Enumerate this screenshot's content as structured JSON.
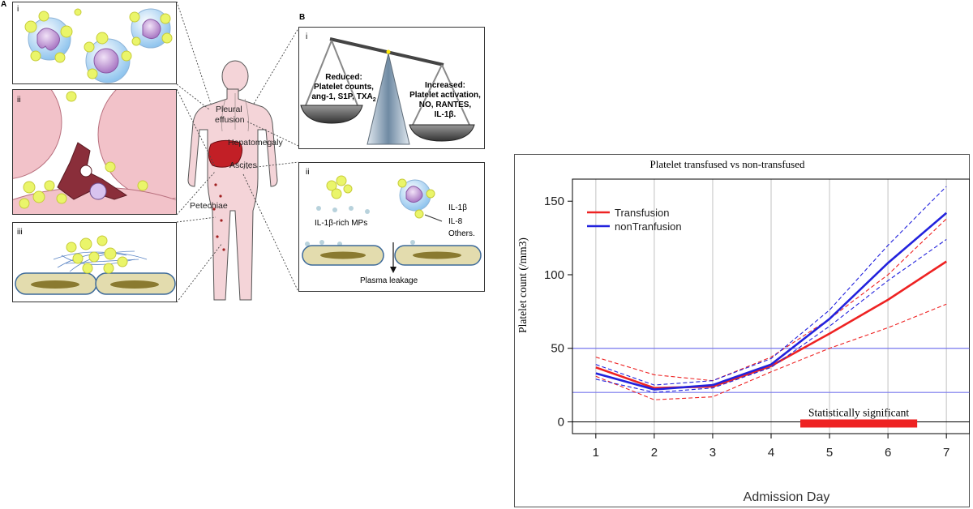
{
  "figure": {
    "panel_a_letter": "A",
    "panel_b_letter": "B",
    "sub_i": "i",
    "sub_ii": "ii",
    "sub_iii": "iii",
    "body_labels": {
      "pleural_1": "Pleural",
      "pleural_2": "effusion",
      "hepatomegaly": "Hepatomegaly",
      "ascites": "Ascites",
      "petechiae": "Petechiae"
    },
    "balance": {
      "reduced_1": "Reduced:",
      "reduced_2": "Platelet counts,",
      "reduced_3": "ang-1, S1P, TXA",
      "reduced_sub": "2",
      "increased_1": "Increased:",
      "increased_2": "Platelet activation,",
      "increased_3": "NO, RANTES,",
      "increased_4": "IL-1β."
    },
    "leakage": {
      "mps": "IL-1β-rich MPs",
      "il1b": "IL-1β",
      "il8": "IL-8",
      "others": "Others.",
      "plasma": "Plasma leakage"
    }
  },
  "chart_data": {
    "type": "line",
    "title": "Platelet transfused vs non-transfused",
    "xlabel": "Admission Day",
    "ylabel": "Platelet count (/mm3)",
    "x": [
      1,
      2,
      3,
      4,
      5,
      6,
      7
    ],
    "xlim": [
      0.6,
      7.4
    ],
    "ylim": [
      -8,
      165
    ],
    "xticks": [
      1,
      2,
      3,
      4,
      5,
      6,
      7
    ],
    "yticks": [
      0,
      50,
      100,
      150
    ],
    "reference_lines": [
      20,
      50
    ],
    "colors": {
      "transfusion": "#ee2222",
      "nontransfusion": "#2222dd",
      "refline": "#7777ee",
      "grid": "#cccccc"
    },
    "series": [
      {
        "name": "Transfusion",
        "color": "#ee2222",
        "style": "solid",
        "values": [
          37,
          23,
          24,
          38,
          60,
          83,
          109
        ]
      },
      {
        "name": "Transfusion upper",
        "color": "#ee2222",
        "style": "dashed",
        "values": [
          44,
          32,
          28,
          44,
          70,
          100,
          138
        ]
      },
      {
        "name": "Transfusion lower",
        "color": "#ee2222",
        "style": "dashed",
        "values": [
          31,
          15,
          17,
          34,
          50,
          64,
          80
        ]
      },
      {
        "name": "nonTranfusion",
        "color": "#2222dd",
        "style": "solid",
        "values": [
          33,
          22,
          25,
          39,
          70,
          108,
          142
        ]
      },
      {
        "name": "nonTranfusion upper",
        "color": "#2222dd",
        "style": "dashed",
        "values": [
          39,
          25,
          28,
          43,
          76,
          120,
          160
        ]
      },
      {
        "name": "nonTranfusion lower",
        "color": "#2222dd",
        "style": "dashed",
        "values": [
          29,
          20,
          23,
          37,
          65,
          96,
          124
        ]
      }
    ],
    "legend": [
      "Transfusion",
      "nonTranfusion"
    ],
    "legend_position": "top-left",
    "significance": {
      "label": "Statistically significant",
      "x_range": [
        4.5,
        6.5
      ],
      "color": "#ee2222"
    }
  }
}
